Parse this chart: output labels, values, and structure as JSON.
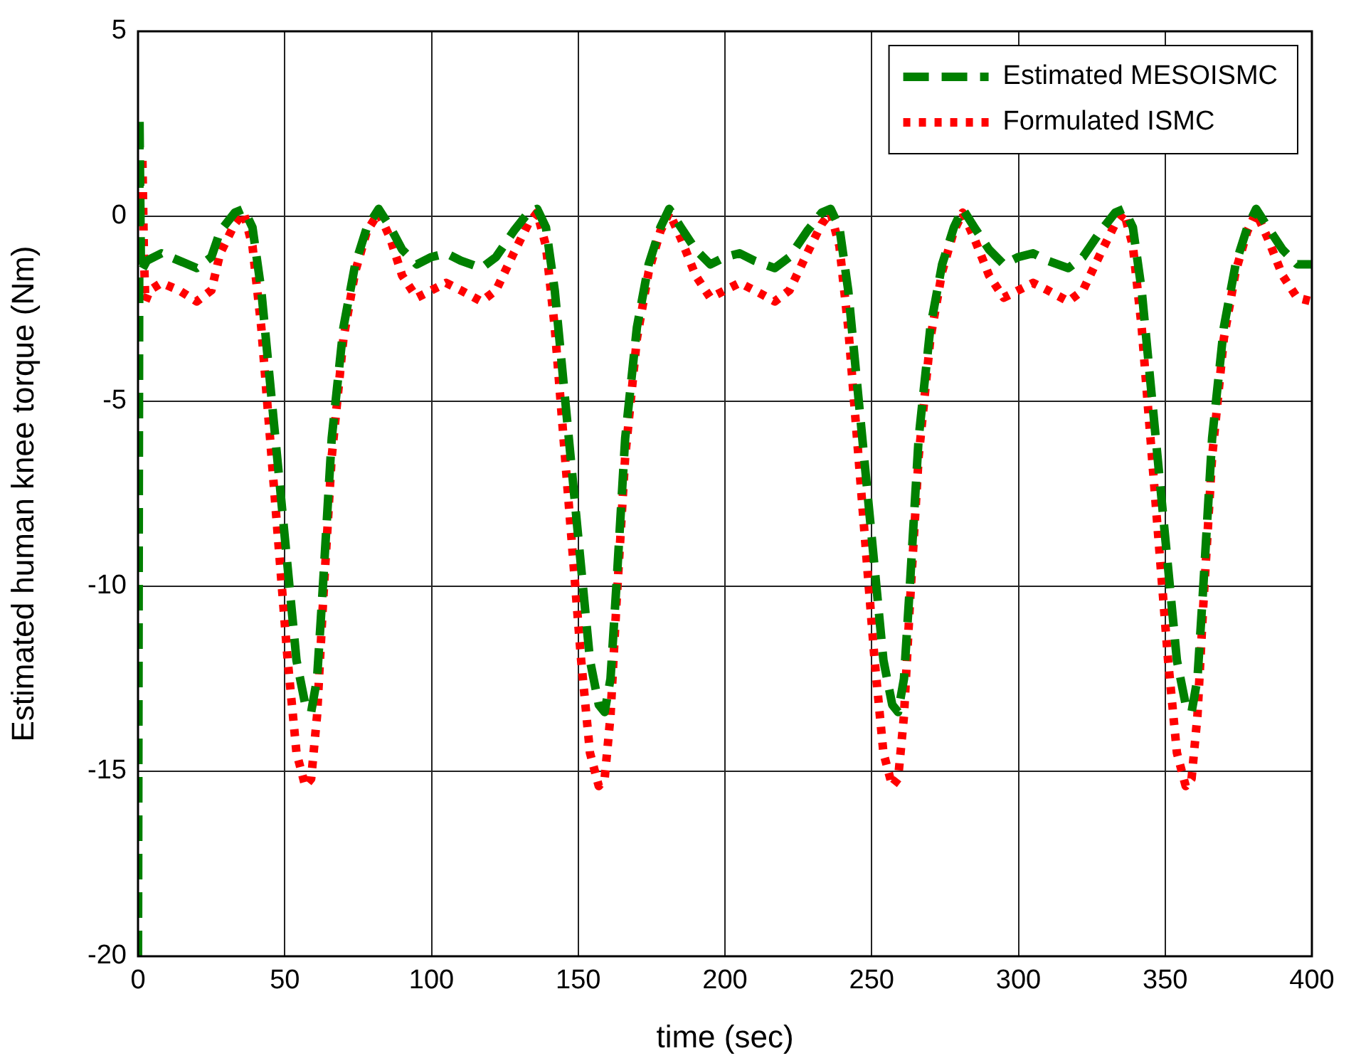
{
  "chart_data": {
    "type": "line",
    "xlabel": "time (sec)",
    "ylabel": "Estimated human knee torque (Nm)",
    "x": [
      0,
      0.5,
      1,
      3,
      8,
      14,
      20,
      25,
      28,
      33,
      36,
      39,
      42,
      45,
      48,
      51,
      54,
      57,
      59,
      61,
      63,
      66,
      70,
      74,
      78,
      82,
      86,
      90,
      95,
      100,
      105,
      110,
      117,
      122,
      128,
      133,
      136,
      139,
      142,
      145,
      148,
      151,
      154,
      157,
      159,
      161,
      163,
      166,
      170,
      174,
      178,
      181,
      185,
      190,
      195,
      200,
      205,
      210,
      217,
      222,
      228,
      233,
      236,
      239,
      242,
      245,
      248,
      251,
      254,
      257,
      259,
      261,
      263,
      266,
      270,
      274,
      278,
      281,
      285,
      290,
      295,
      300,
      305,
      310,
      317,
      322,
      328,
      333,
      336,
      339,
      342,
      345,
      348,
      351,
      354,
      357,
      359,
      361,
      363,
      366,
      370,
      374,
      378,
      381,
      385,
      390,
      395,
      400
    ],
    "series": [
      {
        "name": "Estimated MESOISMC",
        "color": "#008000",
        "line_style": "dashed",
        "values": [
          -20,
          2.7,
          -1.5,
          -1.2,
          -1.0,
          -1.2,
          -1.4,
          -1.1,
          -0.4,
          0.1,
          0.2,
          -0.3,
          -2,
          -4.5,
          -7,
          -9.5,
          -12,
          -13.2,
          -13.4,
          -12.5,
          -10,
          -6,
          -3,
          -1.3,
          -0.3,
          0.2,
          -0.3,
          -0.9,
          -1.3,
          -1.1,
          -1.0,
          -1.2,
          -1.4,
          -1.1,
          -0.4,
          0.1,
          0.2,
          -0.3,
          -2,
          -4.5,
          -7,
          -9.5,
          -12,
          -13.2,
          -13.4,
          -12.5,
          -10,
          -6,
          -3,
          -1.3,
          -0.3,
          0.2,
          -0.3,
          -0.9,
          -1.3,
          -1.1,
          -1.0,
          -1.2,
          -1.4,
          -1.1,
          -0.4,
          0.1,
          0.2,
          -0.3,
          -2,
          -4.5,
          -7,
          -9.5,
          -12,
          -13.2,
          -13.4,
          -12.5,
          -10,
          -6,
          -3,
          -1.3,
          -0.3,
          0.2,
          -0.3,
          -0.9,
          -1.3,
          -1.1,
          -1.0,
          -1.2,
          -1.4,
          -1.1,
          -0.4,
          0.1,
          0.2,
          -0.3,
          -2,
          -4.5,
          -7,
          -9.5,
          -12,
          -13.2,
          -13.4,
          -12.5,
          -10,
          -6,
          -3,
          -1.3,
          -0.3,
          0.2,
          -0.3,
          -0.9,
          -1.3,
          -1.3
        ]
      },
      {
        "name": "Formulated ISMC",
        "color": "#ff0000",
        "line_style": "dotted",
        "x": [
          1.5,
          2,
          2.5,
          4,
          8,
          14,
          20,
          25,
          28,
          33,
          36,
          39,
          42,
          45,
          48,
          51,
          54,
          57,
          59,
          61,
          63,
          66,
          70,
          74,
          78,
          82,
          86,
          90,
          95,
          100,
          105,
          110,
          117,
          122,
          128,
          133,
          136,
          139,
          142,
          145,
          148,
          151,
          154,
          157,
          159,
          161,
          163,
          166,
          170,
          174,
          178,
          181,
          185,
          190,
          195,
          200,
          205,
          210,
          217,
          222,
          228,
          233,
          236,
          239,
          242,
          245,
          248,
          251,
          254,
          257,
          259,
          261,
          263,
          266,
          270,
          274,
          278,
          281,
          285,
          290,
          295,
          300,
          305,
          310,
          317,
          322,
          328,
          333,
          336,
          339,
          342,
          345,
          348,
          351,
          354,
          357,
          359,
          361,
          363,
          366,
          370,
          374,
          378,
          381,
          385,
          390,
          395,
          400
        ],
        "values": [
          1.5,
          -1.0,
          -2.3,
          -2.0,
          -1.8,
          -2.0,
          -2.3,
          -2.0,
          -1.0,
          -0.2,
          0.1,
          -0.8,
          -3,
          -6,
          -9,
          -12,
          -14.5,
          -15.4,
          -15.2,
          -13.5,
          -10.5,
          -6.5,
          -3.3,
          -1.5,
          -0.4,
          0.1,
          -0.6,
          -1.6,
          -2.2,
          -2.0,
          -1.8,
          -2.0,
          -2.3,
          -2.0,
          -1.0,
          -0.2,
          0.1,
          -0.8,
          -3,
          -6,
          -9,
          -12,
          -14.5,
          -15.4,
          -15.2,
          -13.5,
          -10.5,
          -6.5,
          -3.3,
          -1.5,
          -0.4,
          0.1,
          -0.6,
          -1.6,
          -2.2,
          -2.0,
          -1.8,
          -2.0,
          -2.3,
          -2.0,
          -1.0,
          -0.2,
          0.1,
          -0.8,
          -3,
          -6,
          -9,
          -12,
          -14.5,
          -15.4,
          -15.2,
          -13.5,
          -10.5,
          -6.5,
          -3.3,
          -1.5,
          -0.4,
          0.1,
          -0.6,
          -1.6,
          -2.2,
          -2.0,
          -1.8,
          -2.0,
          -2.3,
          -2.0,
          -1.0,
          -0.2,
          0.1,
          -0.8,
          -3,
          -6,
          -9,
          -12,
          -14.5,
          -15.4,
          -15.2,
          -13.5,
          -10.5,
          -6.5,
          -3.3,
          -1.5,
          -0.4,
          0.1,
          -0.6,
          -1.6,
          -2.2,
          -2.3
        ]
      }
    ],
    "xlim": [
      0,
      400
    ],
    "xticks": [
      0,
      50,
      100,
      150,
      200,
      250,
      300,
      350,
      400
    ],
    "ylim": [
      -20,
      5
    ],
    "yticks": [
      -20,
      -15,
      -10,
      -5,
      0,
      5
    ],
    "grid": true,
    "legend": "top right",
    "marker": "none"
  }
}
